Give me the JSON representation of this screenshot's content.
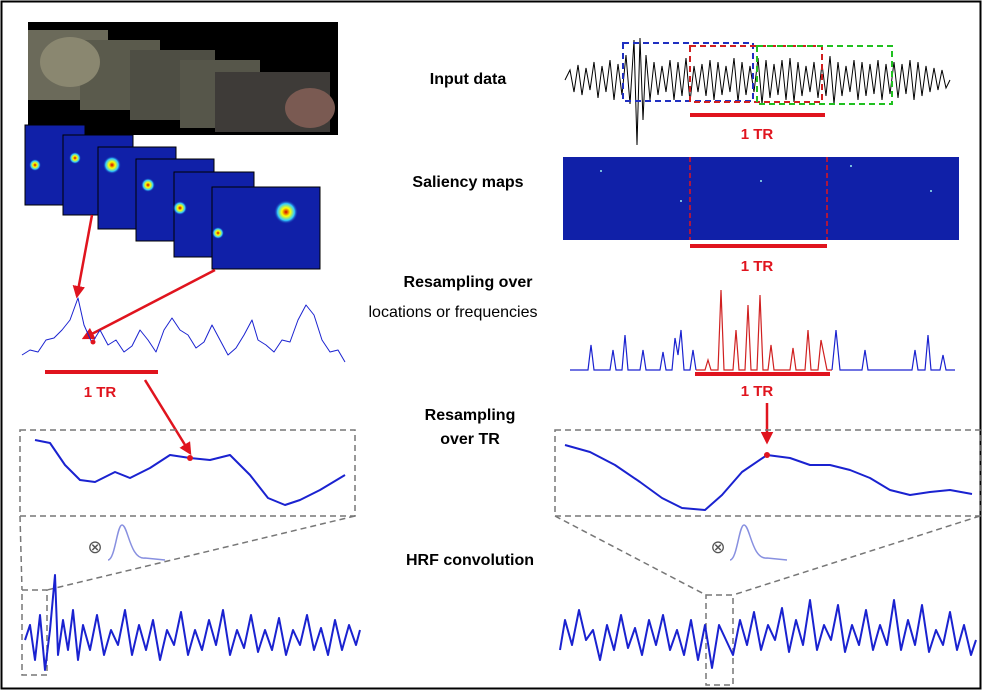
{
  "labels": {
    "input_data": "Input data",
    "saliency_maps": "Saliency maps",
    "resampling_over": "Resampling over",
    "locations_or_frequencies": "locations or frequencies",
    "resampling": "Resampling",
    "over_tr": "over TR",
    "hrf_convolution": "HRF convolution"
  },
  "tr_labels": [
    "1 TR",
    "1 TR",
    "1 TR",
    "1 TR"
  ],
  "convolution_symbols": [
    "⊗",
    "⊗"
  ]
}
